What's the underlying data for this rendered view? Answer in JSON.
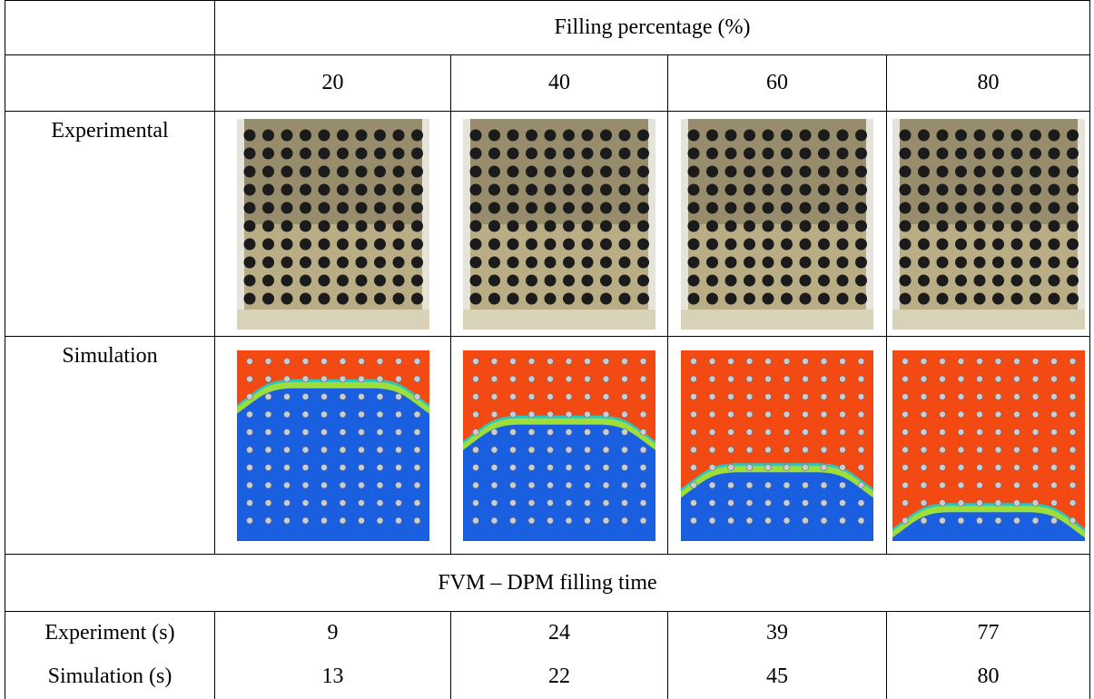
{
  "table": {
    "header": "Filling percentage (%)",
    "columns": [
      "20",
      "40",
      "60",
      "80"
    ],
    "image_rows": [
      "Experimental",
      "Simulation"
    ],
    "section": "FVM – DPM filling time",
    "time_rows": [
      {
        "label": "Experiment (s)",
        "values": [
          9,
          24,
          39,
          77
        ]
      },
      {
        "label": "Simulation (s)",
        "values": [
          13,
          22,
          45,
          80
        ]
      }
    ]
  }
}
